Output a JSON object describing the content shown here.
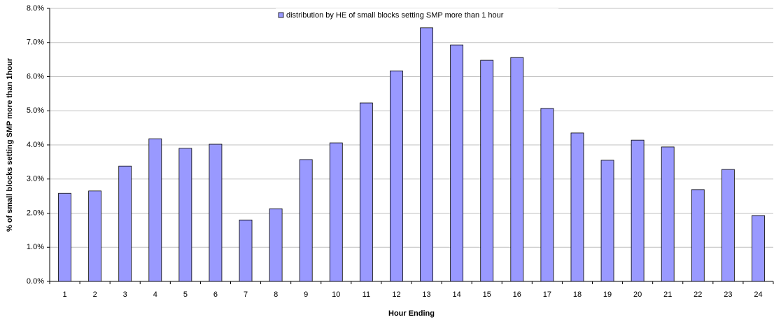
{
  "chart_data": {
    "type": "bar",
    "legend_label": "distribution by HE of small blocks setting SMP more than 1 hour",
    "xlabel": "Hour Ending",
    "ylabel": "% of small blocks setting SMP more than 1hour",
    "categories": [
      "1",
      "2",
      "3",
      "4",
      "5",
      "6",
      "7",
      "8",
      "9",
      "10",
      "11",
      "12",
      "13",
      "14",
      "15",
      "16",
      "17",
      "18",
      "19",
      "20",
      "21",
      "22",
      "23",
      "24"
    ],
    "values": [
      2.58,
      2.65,
      3.38,
      4.18,
      3.9,
      4.02,
      1.8,
      2.13,
      3.57,
      4.06,
      5.23,
      6.17,
      7.43,
      6.93,
      6.48,
      6.56,
      5.07,
      4.35,
      3.55,
      4.14,
      3.94,
      2.69,
      3.28,
      1.93
    ],
    "color": "#9999ff",
    "ylim": [
      0,
      8
    ],
    "yticks": [
      {
        "value": 0,
        "label": "0.0%"
      },
      {
        "value": 1,
        "label": "1.0%"
      },
      {
        "value": 2,
        "label": "2.0%"
      },
      {
        "value": 3,
        "label": "3.0%"
      },
      {
        "value": 4,
        "label": "4.0%"
      },
      {
        "value": 5,
        "label": "5.0%"
      },
      {
        "value": 6,
        "label": "6.0%"
      },
      {
        "value": 7,
        "label": "7.0%"
      },
      {
        "value": 8,
        "label": "8.0%"
      }
    ],
    "grid": true
  }
}
